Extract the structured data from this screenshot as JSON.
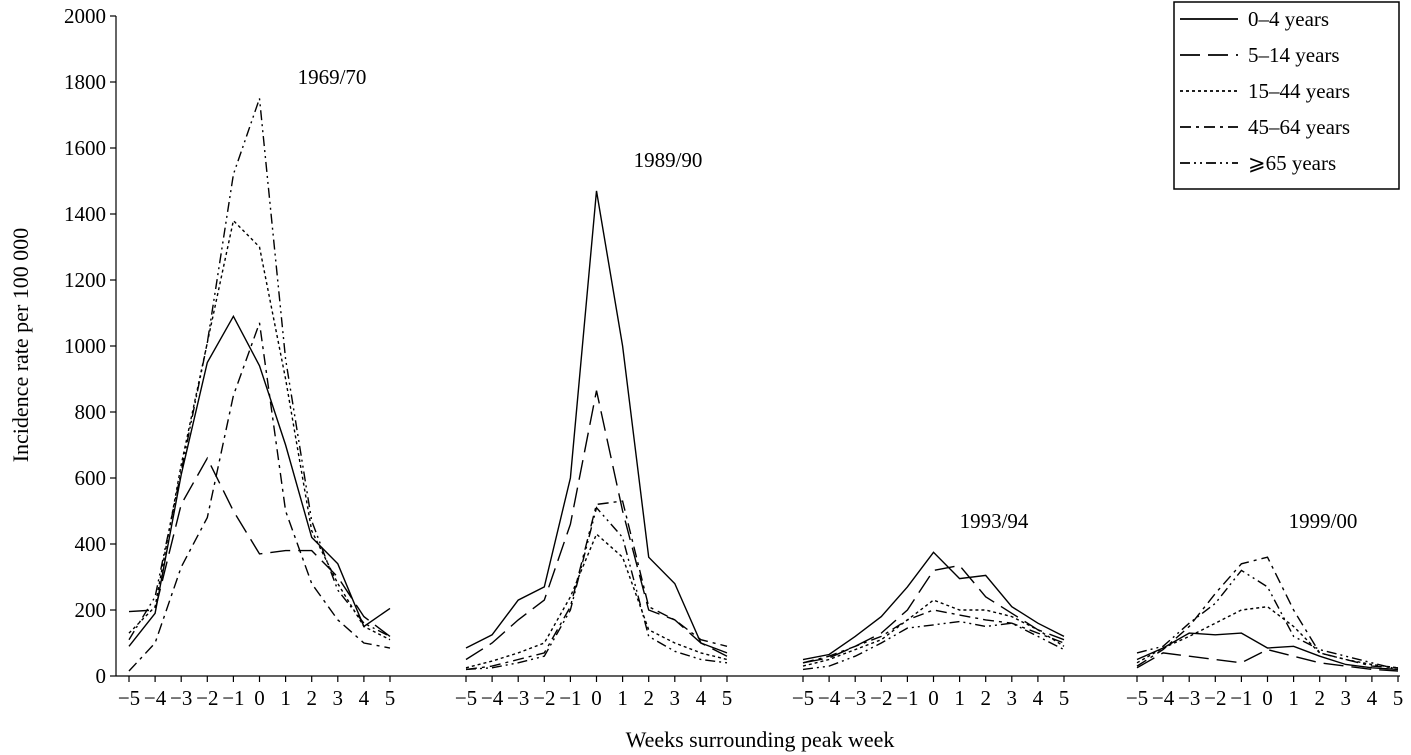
{
  "chart_data": {
    "type": "line",
    "xlabel": "Weeks surrounding peak week",
    "ylabel": "Incidence rate per 100 000",
    "ylim": [
      0,
      2000
    ],
    "yticks": [
      "0",
      "200",
      "400",
      "600",
      "800",
      "1000",
      "1200",
      "1400",
      "1600",
      "1800",
      "2000"
    ],
    "x": [
      -5,
      -4,
      -3,
      -2,
      -1,
      0,
      1,
      2,
      3,
      4,
      5
    ],
    "xtick_labels": [
      "−5",
      "−4",
      "−3",
      "−2",
      "−1",
      "0",
      "1",
      "2",
      "3",
      "4",
      "5"
    ],
    "grid": false,
    "legend_position": "top-right",
    "legend": [
      {
        "name": "0–4 years",
        "dash": "solid"
      },
      {
        "name": "5–14 years",
        "dash": "long-dash"
      },
      {
        "name": "15–44 years",
        "dash": "dotted"
      },
      {
        "name": "45–64 years",
        "dash": "dash"
      },
      {
        "name": "⩾65 years",
        "dash": "dash-dot"
      }
    ],
    "panels": [
      {
        "label": "1969/70",
        "series": [
          {
            "values": [
              90,
              190,
              610,
              950,
              1090,
              940,
              700,
              420,
              340,
              150,
              205
            ]
          },
          {
            "values": [
              195,
              200,
              520,
              660,
              500,
              370,
              380,
              380,
              300,
              180,
              120
            ]
          },
          {
            "values": [
              130,
              210,
              640,
              1010,
              1380,
              1300,
              900,
              440,
              280,
              150,
              110
            ]
          },
          {
            "values": [
              15,
              100,
              330,
              480,
              850,
              1070,
              500,
              280,
              170,
              100,
              85
            ]
          },
          {
            "values": [
              110,
              240,
              620,
              1010,
              1520,
              1750,
              960,
              470,
              260,
              160,
              120
            ]
          }
        ]
      },
      {
        "label": "1989/90",
        "series": [
          {
            "values": [
              85,
              125,
              230,
              270,
              600,
              1470,
              1000,
              360,
              280,
              100,
              70
            ]
          },
          {
            "values": [
              50,
              100,
              170,
              230,
              460,
              865,
              500,
              200,
              170,
              100,
              60
            ]
          },
          {
            "values": [
              25,
              45,
              70,
              100,
              240,
              430,
              360,
              140,
              100,
              70,
              50
            ]
          },
          {
            "values": [
              20,
              30,
              50,
              70,
              210,
              520,
              530,
              210,
              170,
              110,
              90
            ]
          },
          {
            "values": [
              20,
              25,
              40,
              60,
              200,
              510,
              420,
              120,
              75,
              50,
              40
            ]
          }
        ]
      },
      {
        "label": "1993/94",
        "series": [
          {
            "values": [
              50,
              65,
              120,
              180,
              270,
              375,
              295,
              305,
              210,
              160,
              120
            ]
          },
          {
            "values": [
              40,
              55,
              90,
              130,
              200,
              320,
              335,
              240,
              190,
              140,
              110
            ]
          },
          {
            "values": [
              30,
              50,
              80,
              110,
              170,
              230,
              200,
              200,
              180,
              140,
              90
            ]
          },
          {
            "values": [
              40,
              60,
              90,
              120,
              170,
              200,
              185,
              170,
              160,
              130,
              100
            ]
          },
          {
            "values": [
              20,
              30,
              60,
              100,
              145,
              155,
              165,
              150,
              160,
              120,
              80
            ]
          }
        ]
      },
      {
        "label": "1999/00",
        "series": [
          {
            "values": [
              50,
              85,
              130,
              125,
              130,
              85,
              90,
              60,
              35,
              25,
              20
            ]
          },
          {
            "values": [
              25,
              70,
              60,
              50,
              40,
              80,
              60,
              40,
              30,
              20,
              15
            ]
          },
          {
            "values": [
              40,
              85,
              120,
              160,
              200,
              210,
              150,
              70,
              50,
              35,
              25
            ]
          },
          {
            "values": [
              30,
              80,
              150,
              250,
              340,
              360,
              200,
              70,
              50,
              30,
              25
            ]
          },
          {
            "values": [
              70,
              90,
              160,
              220,
              320,
              270,
              120,
              80,
              60,
              40,
              20
            ]
          }
        ]
      }
    ]
  }
}
